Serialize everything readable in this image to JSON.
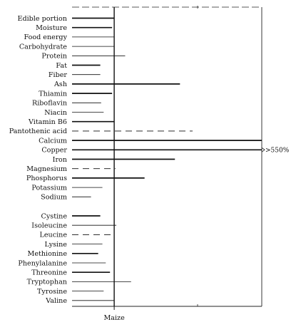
{
  "chart_data": {
    "type": "bar",
    "orientation": "horizontal",
    "reference_label": "Maize",
    "reference_value": 100,
    "xlim": [
      0,
      450
    ],
    "grid": false,
    "off_scale_note": ">550%",
    "items": [
      {
        "label": "Edible portion",
        "value": 100,
        "style": "solid"
      },
      {
        "label": "Moisture",
        "value": 95,
        "style": "solid"
      },
      {
        "label": "Food energy",
        "value": 100,
        "style": "thin"
      },
      {
        "label": "Carbohydrate",
        "value": 100,
        "style": "thin"
      },
      {
        "label": "Protein",
        "value": 126,
        "style": "thin"
      },
      {
        "label": "Fat",
        "value": 67,
        "style": "solid"
      },
      {
        "label": "Fiber",
        "value": 67,
        "style": "thin"
      },
      {
        "label": "Ash",
        "value": 256,
        "style": "solid"
      },
      {
        "label": "Thiamin",
        "value": 95,
        "style": "solid"
      },
      {
        "label": "Riboflavin",
        "value": 69,
        "style": "thin"
      },
      {
        "label": "Niacin",
        "value": 75,
        "style": "thin"
      },
      {
        "label": "Vitamin B6",
        "value": 100,
        "style": "solid"
      },
      {
        "label": "Pantothenic acid",
        "value": 286,
        "style": "dashed"
      },
      {
        "label": "Calcium",
        "value": 450,
        "style": "solid"
      },
      {
        "label": "Copper",
        "value": 450,
        "style": "solid",
        "off_scale": true
      },
      {
        "label": "Iron",
        "value": 244,
        "style": "solid"
      },
      {
        "label": "Magnesium",
        "value": 103,
        "style": "dashed"
      },
      {
        "label": "Phosphorus",
        "value": 172,
        "style": "solid"
      },
      {
        "label": "Potassium",
        "value": 72,
        "style": "thin"
      },
      {
        "label": "Sodium",
        "value": 45,
        "style": "thin"
      },
      {
        "label": "Cystine",
        "value": 67,
        "style": "solid"
      },
      {
        "label": "Isoleucine",
        "value": 105,
        "style": "thin"
      },
      {
        "label": "Leucine",
        "value": 100,
        "style": "dashed"
      },
      {
        "label": "Lysine",
        "value": 72,
        "style": "thin"
      },
      {
        "label": "Methionine",
        "value": 62,
        "style": "solid"
      },
      {
        "label": "Phenylalanine",
        "value": 80,
        "style": "thin"
      },
      {
        "label": "Threonine",
        "value": 90,
        "style": "solid"
      },
      {
        "label": "Tryptophan",
        "value": 140,
        "style": "thin"
      },
      {
        "label": "Tyrosine",
        "value": 75,
        "style": "thin"
      },
      {
        "label": "Valine",
        "value": 100,
        "style": "thin"
      }
    ]
  }
}
